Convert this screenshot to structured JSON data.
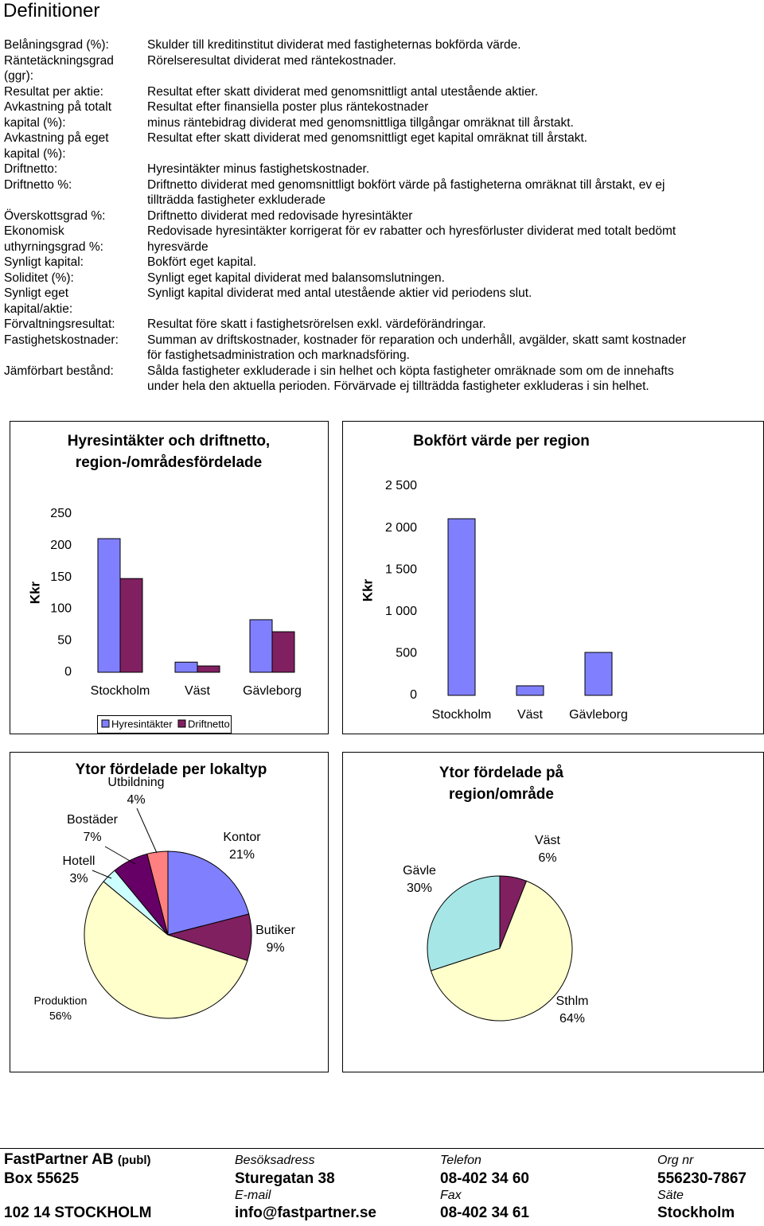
{
  "header": {
    "title": "Definitioner"
  },
  "definitions": [
    {
      "term": [
        "Belåningsgrad (%):"
      ],
      "desc": [
        "Skulder till kreditinstitut dividerat med fastigheternas bokförda värde."
      ]
    },
    {
      "term": [
        "Räntetäckningsgrad",
        "(ggr):"
      ],
      "desc": [
        "Rörelseresultat dividerat med räntekostnader."
      ]
    },
    {
      "term": [
        "Resultat per aktie:"
      ],
      "desc": [
        "Resultat efter skatt dividerat med genomsnittligt antal utestående aktier."
      ]
    },
    {
      "term": [
        "Avkastning på totalt",
        "kapital (%):"
      ],
      "desc": [
        "Resultat efter finansiella poster plus räntekostnader",
        "minus räntebidrag dividerat med genomsnittliga tillgångar omräknat till årstakt."
      ]
    },
    {
      "term": [
        "Avkastning på eget",
        "kapital (%):"
      ],
      "desc": [
        "Resultat efter skatt dividerat med genomsnittligt eget kapital omräknat till årstakt."
      ]
    },
    {
      "term": [
        "Driftnetto:"
      ],
      "desc": [
        "Hyresintäkter minus fastighetskostnader."
      ]
    },
    {
      "term": [
        "Driftnetto %:"
      ],
      "desc": [
        "Driftnetto dividerat med genomsnittligt bokfört värde på fastigheterna omräknat till årstakt, ev ej",
        "tillträdda fastigheter exkluderade"
      ]
    },
    {
      "term": [
        "Överskottsgrad %:"
      ],
      "desc": [
        "Driftnetto dividerat med redovisade hyresintäkter"
      ]
    },
    {
      "term": [
        "Ekonomisk",
        "uthyrningsgrad %:"
      ],
      "desc": [
        "Redovisade hyresintäkter korrigerat för ev rabatter och hyresförluster dividerat med totalt bedömt",
        "hyresvärde"
      ]
    },
    {
      "term": [
        "Synligt kapital:"
      ],
      "desc": [
        "Bokfört eget kapital."
      ]
    },
    {
      "term": [
        "Soliditet (%):"
      ],
      "desc": [
        "Synligt eget kapital dividerat med balansomslutningen."
      ]
    },
    {
      "term": [
        "Synligt eget",
        "kapital/aktie:"
      ],
      "desc": [
        "Synligt kapital dividerat med antal utestående aktier vid periodens slut."
      ]
    },
    {
      "term": [
        "Förvaltningsresultat:"
      ],
      "desc": [
        "Resultat före skatt i fastighetsrörelsen exkl. värdeförändringar."
      ]
    },
    {
      "term": [
        "Fastighetskostnader:"
      ],
      "desc": [
        "Summan av driftskostnader, kostnader för reparation och underhåll, avgälder, skatt samt kostnader",
        "för fastighetsadministration och marknadsföring."
      ]
    },
    {
      "term": [
        "Jämförbart bestånd:"
      ],
      "desc": [
        "Sålda fastigheter exkluderade i sin helhet och köpta fastigheter omräknade som om de innehafts",
        "under hela den aktuella perioden. Förvärvade ej tillträdda fastigheter exkluderas i sin helhet."
      ]
    }
  ],
  "chart_data": [
    {
      "type": "bar",
      "title": [
        "Hyresintäkter och driftnetto,",
        "region-/områdesfördelade"
      ],
      "y_label": "Kkr",
      "categories": [
        "Stockholm",
        "Väst",
        "Gävleborg"
      ],
      "series": [
        {
          "name": "Hyresintäkter",
          "color": "#8080ff",
          "values": [
            211,
            16,
            83
          ]
        },
        {
          "name": "Driftnetto",
          "color": "#802060",
          "values": [
            148,
            10,
            64
          ]
        }
      ],
      "ylim": [
        0,
        250
      ],
      "yticks": [
        0,
        50,
        100,
        150,
        200,
        250
      ],
      "legend": "bottom"
    },
    {
      "type": "bar",
      "title": [
        "Bokfört värde per region"
      ],
      "y_label": "Kkr",
      "categories": [
        "Stockholm",
        "Väst",
        "Gävleborg"
      ],
      "values": [
        2110,
        114,
        513
      ],
      "color": "#8080ff",
      "ylim": [
        0,
        2500
      ],
      "yticks": [
        0,
        {
          "value": 500,
          "label": "500"
        },
        {
          "value": 1000,
          "label": "1 000"
        },
        {
          "value": 1500,
          "label": "1 500"
        },
        {
          "value": 2000,
          "label": "2 000"
        },
        {
          "value": 2500,
          "label": "2 500"
        }
      ]
    },
    {
      "type": "pie",
      "title": [
        "Ytor fördelade per lokaltyp"
      ],
      "categories": [
        "Kontor",
        "Butiker",
        "Produktion",
        "Hotell",
        "Bostäder",
        "Utbildning"
      ],
      "values": [
        21,
        9,
        56,
        3,
        7,
        4
      ],
      "value_labels": [
        "21%",
        "9%",
        "56%",
        "3%",
        "7%",
        "4%"
      ],
      "colors": [
        "#8080ff",
        "#802060",
        "#ffffcc",
        "#ccffff",
        "#660066",
        "#ff8080"
      ]
    },
    {
      "type": "pie",
      "title": [
        "Ytor fördelade på",
        "region/område"
      ],
      "categories": [
        "Väst",
        "Sthlm",
        "Gävle"
      ],
      "values": [
        6,
        64,
        30
      ],
      "value_labels": [
        "6%",
        "64%",
        "30%"
      ],
      "colors": [
        "#802060",
        "#ffffcc",
        "#a6e6e6"
      ]
    }
  ],
  "footer": {
    "company": "FastPartner AB",
    "suffix": "(publ)",
    "visit_label": "Besöksadress",
    "phone_label": "Telefon",
    "org_label": "Org nr",
    "box": "Box 55625",
    "street": "Sturegatan 38",
    "phone": "08-402 34 60",
    "org_nr": "556230-7867",
    "email_label": "E-mail",
    "fax_label": "Fax",
    "seat_label": "Säte",
    "city": "102 14 STOCKHOLM",
    "email": "info@fastpartner.se",
    "fax": "08-402 34 61",
    "seat": "Stockholm"
  }
}
